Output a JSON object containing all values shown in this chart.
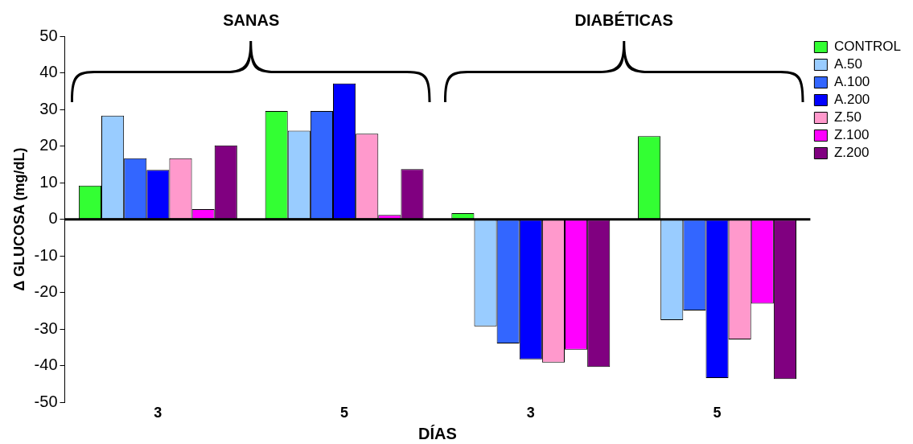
{
  "chart_data": {
    "type": "bar",
    "xlabel": "DÍAS",
    "ylabel": "Δ GLUCOSA (mg/dL)",
    "annotations": [
      "SANAS",
      "DIABÉTICAS"
    ],
    "categories": [
      "3",
      "5",
      "3",
      "5"
    ],
    "ylim": [
      -50,
      50
    ],
    "yticks": [
      -50,
      -40,
      -30,
      -20,
      -10,
      0,
      10,
      20,
      30,
      40,
      50
    ],
    "grid": false,
    "legend": "top right",
    "ref_lines": [
      {
        "axis": "y",
        "value": 0,
        "color": "#000000"
      }
    ],
    "series": [
      {
        "name": "CONTROL",
        "color": "#33ff33",
        "values": [
          9.2,
          29.6,
          1.7,
          22.7
        ]
      },
      {
        "name": "A.50",
        "color": "#99ccff",
        "values": [
          28.3,
          24.2,
          -29.2,
          -27.5
        ]
      },
      {
        "name": "A.100",
        "color": "#3366ff",
        "values": [
          16.7,
          29.6,
          -33.9,
          -24.9
        ]
      },
      {
        "name": "A.200",
        "color": "#0000ff",
        "values": [
          13.5,
          37.1,
          -38.2,
          -43.3
        ]
      },
      {
        "name": "Z.50",
        "color": "#ff99cc",
        "values": [
          16.7,
          23.4,
          -39.1,
          -32.8
        ]
      },
      {
        "name": "Z.100",
        "color": "#ff00ff",
        "values": [
          2.8,
          1.2,
          -35.6,
          -23
        ]
      },
      {
        "name": "Z.200",
        "color": "#800080",
        "values": [
          20.2,
          13.7,
          -40.3,
          -43.6
        ]
      }
    ]
  }
}
